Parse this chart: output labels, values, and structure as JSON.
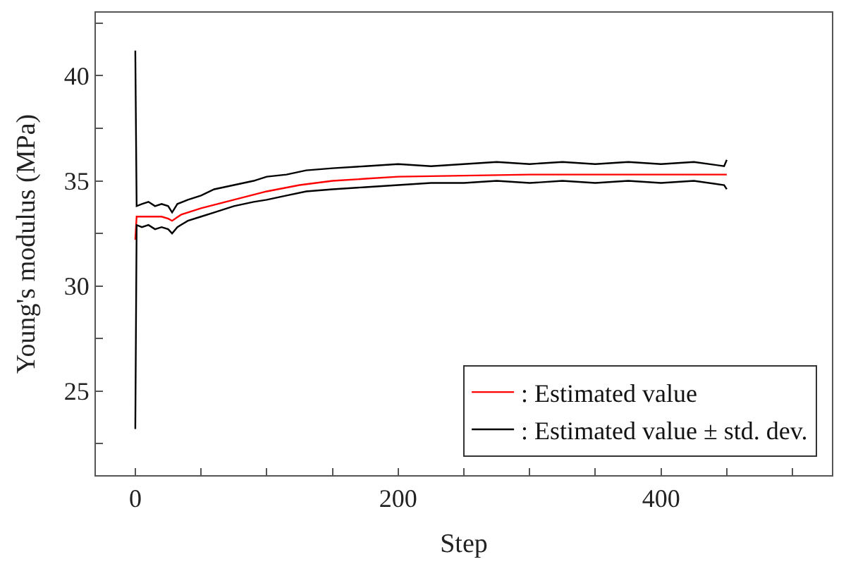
{
  "chart_data": {
    "type": "line",
    "xlabel": "Step",
    "ylabel": "Young's modulus (MPa)",
    "xlim": [
      -30,
      530
    ],
    "ylim": [
      21,
      43
    ],
    "xticks": [
      0,
      {
        "value": 50,
        "label": null
      },
      {
        "value": 100,
        "label": null
      },
      {
        "value": 150,
        "label": null
      },
      200,
      {
        "value": 250,
        "label": null
      },
      {
        "value": 300,
        "label": null
      },
      {
        "value": 350,
        "label": null
      },
      400,
      {
        "value": 450,
        "label": null
      },
      {
        "value": 500,
        "label": null
      }
    ],
    "yticks": [
      {
        "value": 22.5,
        "label": null
      },
      25,
      {
        "value": 27.5,
        "label": null
      },
      30,
      {
        "value": 32.5,
        "label": null
      },
      35,
      {
        "value": 37.5,
        "label": null
      },
      40,
      {
        "value": 42.5,
        "label": null
      }
    ],
    "legend": "bottom right",
    "marker": "none",
    "line_style": "solid",
    "series": [
      {
        "name": ": Estimated value",
        "color": "#ff0000",
        "x": [
          0,
          1,
          10,
          20,
          25,
          28,
          35,
          50,
          75,
          100,
          125,
          150,
          175,
          200,
          250,
          300,
          350,
          400,
          450
        ],
        "values": [
          32.2,
          33.3,
          33.3,
          33.3,
          33.2,
          33.1,
          33.4,
          33.7,
          34.1,
          34.5,
          34.8,
          35.0,
          35.1,
          35.2,
          35.25,
          35.3,
          35.3,
          35.3,
          35.3
        ]
      },
      {
        "name": ": Estimated value ± std. dev.",
        "color": "#000000",
        "x": [
          0,
          1,
          5,
          10,
          15,
          20,
          25,
          28,
          32,
          40,
          50,
          60,
          75,
          90,
          100,
          115,
          130,
          150,
          175,
          200,
          225,
          250,
          275,
          300,
          325,
          350,
          375,
          400,
          425,
          448,
          450
        ],
        "values": [
          41.2,
          33.8,
          33.9,
          34.0,
          33.8,
          33.9,
          33.8,
          33.5,
          33.9,
          34.1,
          34.3,
          34.6,
          34.8,
          35.0,
          35.2,
          35.3,
          35.5,
          35.6,
          35.7,
          35.8,
          35.7,
          35.8,
          35.9,
          35.8,
          35.9,
          35.8,
          35.9,
          35.8,
          35.9,
          35.7,
          36.0
        ]
      },
      {
        "color": "#000000",
        "x": [
          0,
          1,
          5,
          10,
          15,
          20,
          25,
          28,
          32,
          40,
          50,
          60,
          75,
          90,
          100,
          115,
          130,
          150,
          175,
          200,
          225,
          250,
          275,
          300,
          325,
          350,
          375,
          400,
          425,
          448,
          450
        ],
        "values": [
          23.2,
          32.9,
          32.8,
          32.9,
          32.7,
          32.8,
          32.7,
          32.5,
          32.8,
          33.1,
          33.3,
          33.5,
          33.8,
          34.0,
          34.1,
          34.3,
          34.5,
          34.6,
          34.7,
          34.8,
          34.9,
          34.9,
          35.0,
          34.9,
          35.0,
          34.9,
          35.0,
          34.9,
          35.0,
          34.8,
          34.6
        ]
      }
    ]
  }
}
